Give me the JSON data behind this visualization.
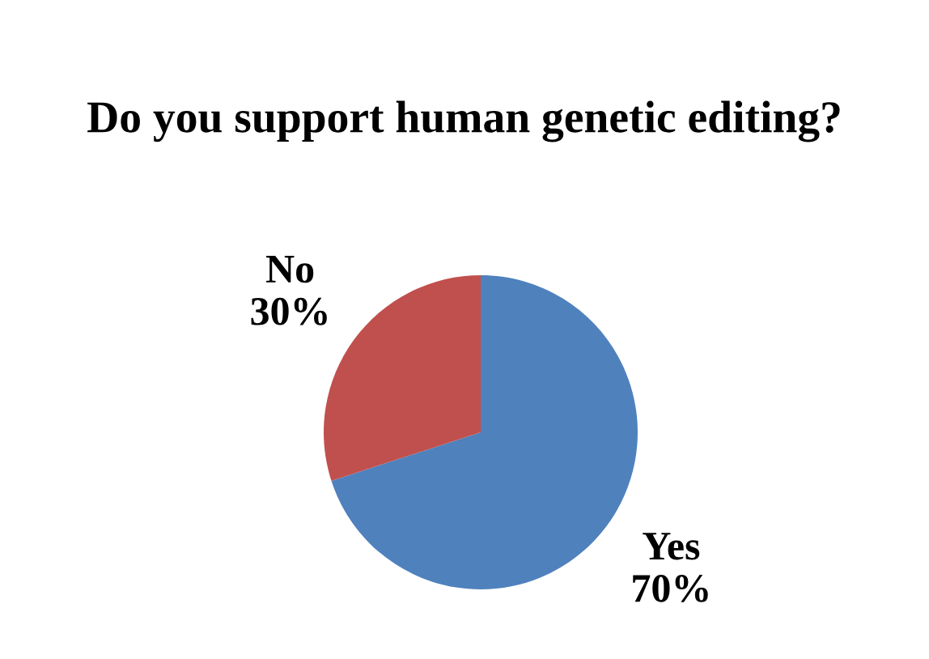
{
  "chart_data": {
    "type": "pie",
    "title": "Do you support human genetic editing?",
    "categories": [
      "Yes",
      "No"
    ],
    "values": [
      70,
      30
    ],
    "value_labels": [
      "70%",
      "30%"
    ],
    "colors": [
      "#4f81bd",
      "#c0504d"
    ],
    "legend": false
  }
}
